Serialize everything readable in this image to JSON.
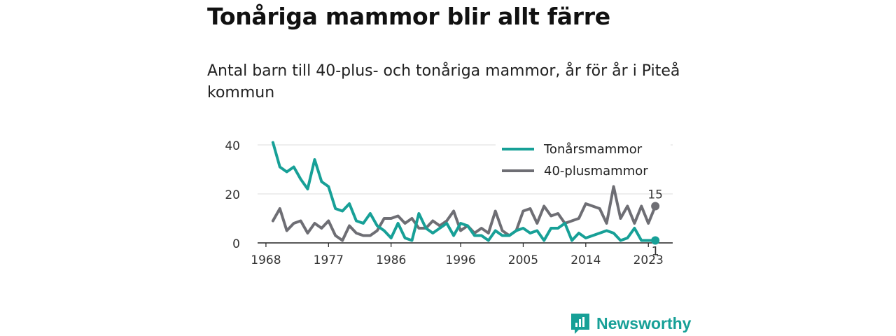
{
  "title": "Tonåriga mammor blir allt färre",
  "subtitle": "Antal barn till 40-plus- och tonåriga mammor, år för år i Piteå kommun",
  "brand": {
    "name": "Newsworthy",
    "color": "#17a097"
  },
  "chart_data": {
    "type": "line",
    "x": [
      1969,
      1970,
      1971,
      1972,
      1973,
      1974,
      1975,
      1976,
      1977,
      1978,
      1979,
      1980,
      1981,
      1982,
      1983,
      1984,
      1985,
      1986,
      1987,
      1988,
      1989,
      1990,
      1991,
      1992,
      1993,
      1994,
      1995,
      1996,
      1997,
      1998,
      1999,
      2000,
      2001,
      2002,
      2003,
      2004,
      2005,
      2006,
      2007,
      2008,
      2009,
      2010,
      2011,
      2012,
      2013,
      2014,
      2015,
      2016,
      2017,
      2018,
      2019,
      2020,
      2021,
      2022,
      2023,
      2024
    ],
    "series": [
      {
        "name": "Tonårsmammor",
        "color": "#17a097",
        "values": [
          41,
          31,
          29,
          31,
          26,
          22,
          34,
          25,
          23,
          14,
          13,
          16,
          9,
          8,
          12,
          7,
          5,
          2,
          8,
          2,
          1,
          12,
          6,
          4,
          6,
          8,
          3,
          8,
          7,
          3,
          3,
          1,
          5,
          3,
          3,
          5,
          6,
          4,
          5,
          1,
          6,
          6,
          8,
          1,
          4,
          2,
          3,
          4,
          5,
          4,
          1,
          2,
          6,
          1,
          1,
          1
        ]
      },
      {
        "name": "40-plusmammor",
        "color": "#6e6e74",
        "values": [
          9,
          14,
          5,
          8,
          9,
          4,
          8,
          6,
          9,
          3,
          1,
          7,
          4,
          3,
          3,
          5,
          10,
          10,
          11,
          8,
          10,
          6,
          6,
          9,
          7,
          9,
          13,
          5,
          7,
          4,
          6,
          4,
          13,
          5,
          3,
          5,
          13,
          14,
          8,
          15,
          11,
          12,
          8,
          9,
          10,
          16,
          15,
          14,
          8,
          23,
          10,
          15,
          8,
          15,
          8,
          15
        ]
      }
    ],
    "end_labels": {
      "40-plusmammor": "15",
      "Tonårsmammor": "1"
    },
    "xticks": [
      1968,
      1977,
      1986,
      1996,
      2005,
      2014,
      2023
    ],
    "yticks": [
      0,
      20,
      40
    ],
    "ylim": [
      0,
      42
    ],
    "xlim": [
      1966.8,
      2026.5
    ],
    "grid": "horizontal",
    "legend_position": "top-right"
  }
}
